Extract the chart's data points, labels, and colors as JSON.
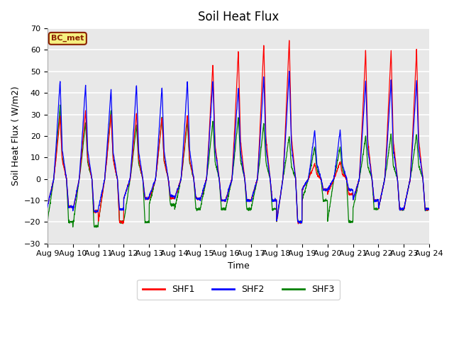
{
  "title": "Soil Heat Flux",
  "xlabel": "Time",
  "ylabel": "Soil Heat Flux ( W/m2)",
  "ylim": [
    -30,
    70
  ],
  "background_color": "#ffffff",
  "plot_bg_color": "#e8e8e8",
  "grid_color": "#ffffff",
  "line_colors": {
    "SHF1": "red",
    "SHF2": "blue",
    "SHF3": "green"
  },
  "annotation_text": "BC_met",
  "annotation_bg": "#f5f080",
  "annotation_border": "#8b2000",
  "xtick_labels": [
    "Aug 9",
    "Aug 10",
    "Aug 11",
    "Aug 12",
    "Aug 13",
    "Aug 14",
    "Aug 15",
    "Aug 16",
    "Aug 17",
    "Aug 18",
    "Aug 19",
    "Aug 20",
    "Aug 21",
    "Aug 22",
    "Aug 23",
    "Aug 24"
  ],
  "title_fontsize": 12,
  "label_fontsize": 9,
  "tick_fontsize": 8,
  "shf1_day_peaks": [
    29,
    32,
    30,
    31,
    29,
    30,
    54,
    60,
    63,
    65,
    7,
    8,
    60,
    60,
    60
  ],
  "shf1_night_mins": [
    -13,
    -15,
    -20,
    -9,
    -9,
    -9,
    -10,
    -10,
    -10,
    -20,
    -5,
    -7,
    -10,
    -14,
    -14
  ],
  "shf2_day_peaks": [
    46,
    44,
    42,
    44,
    43,
    46,
    46,
    43,
    48,
    50,
    23,
    23,
    46,
    46,
    46
  ],
  "shf2_night_mins": [
    -13,
    -15,
    -14,
    -9,
    -8,
    -9,
    -10,
    -10,
    -10,
    -20,
    -5,
    -5,
    -10,
    -14,
    -14
  ],
  "shf3_day_peaks": [
    34,
    26,
    32,
    25,
    29,
    27,
    27,
    29,
    26,
    20,
    15,
    15,
    20,
    21,
    21
  ],
  "shf3_night_mins": [
    -20,
    -22,
    -20,
    -20,
    -12,
    -14,
    -14,
    -14,
    -14,
    -20,
    -10,
    -20,
    -14,
    -14,
    -14
  ]
}
